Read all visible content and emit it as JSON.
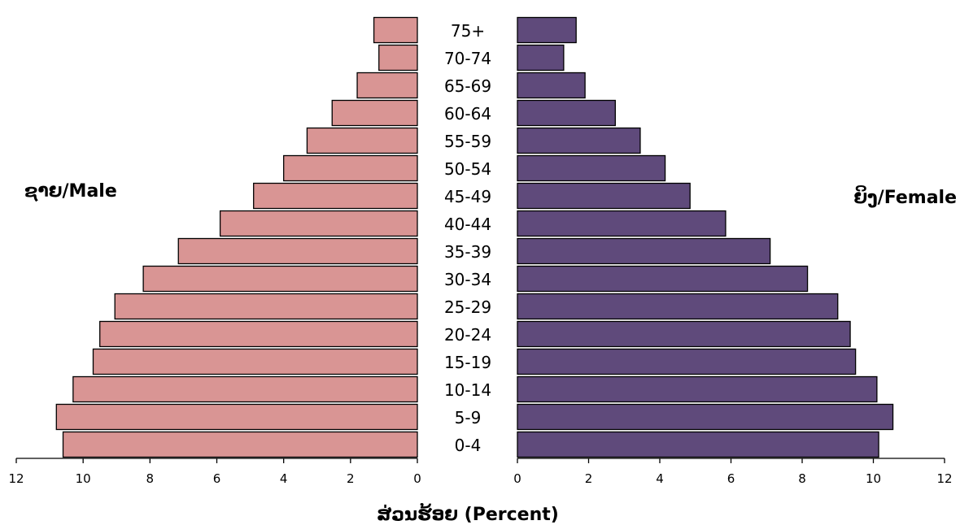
{
  "chart_data": {
    "type": "bar",
    "orientation": "horizontal",
    "layout": "population-pyramid",
    "categories": [
      "0-4",
      "5-9",
      "10-14",
      "15-19",
      "20-24",
      "25-29",
      "30-34",
      "35-39",
      "40-44",
      "45-49",
      "50-54",
      "55-59",
      "60-64",
      "65-69",
      "70-74",
      "75+"
    ],
    "series": [
      {
        "name": "ຊາຍ/Male",
        "side": "left",
        "color": "#d99594",
        "values": [
          10.6,
          10.8,
          10.3,
          9.7,
          9.5,
          9.05,
          8.2,
          7.15,
          5.9,
          4.9,
          4.0,
          3.3,
          2.55,
          1.8,
          1.15,
          1.3
        ]
      },
      {
        "name": "ຍິງ/Female",
        "side": "right",
        "color": "#5f4a7b",
        "values": [
          10.15,
          10.55,
          10.1,
          9.5,
          9.35,
          9.0,
          8.15,
          7.1,
          5.85,
          4.85,
          4.15,
          3.45,
          2.75,
          1.9,
          1.3,
          1.65
        ]
      }
    ],
    "xlabel": "ສ່ວນຮ້ອຍ (Percent)",
    "xlim": [
      0,
      12
    ],
    "xticks": [
      0,
      2,
      4,
      6,
      8,
      10,
      12
    ],
    "grid": false,
    "legend": "none"
  }
}
